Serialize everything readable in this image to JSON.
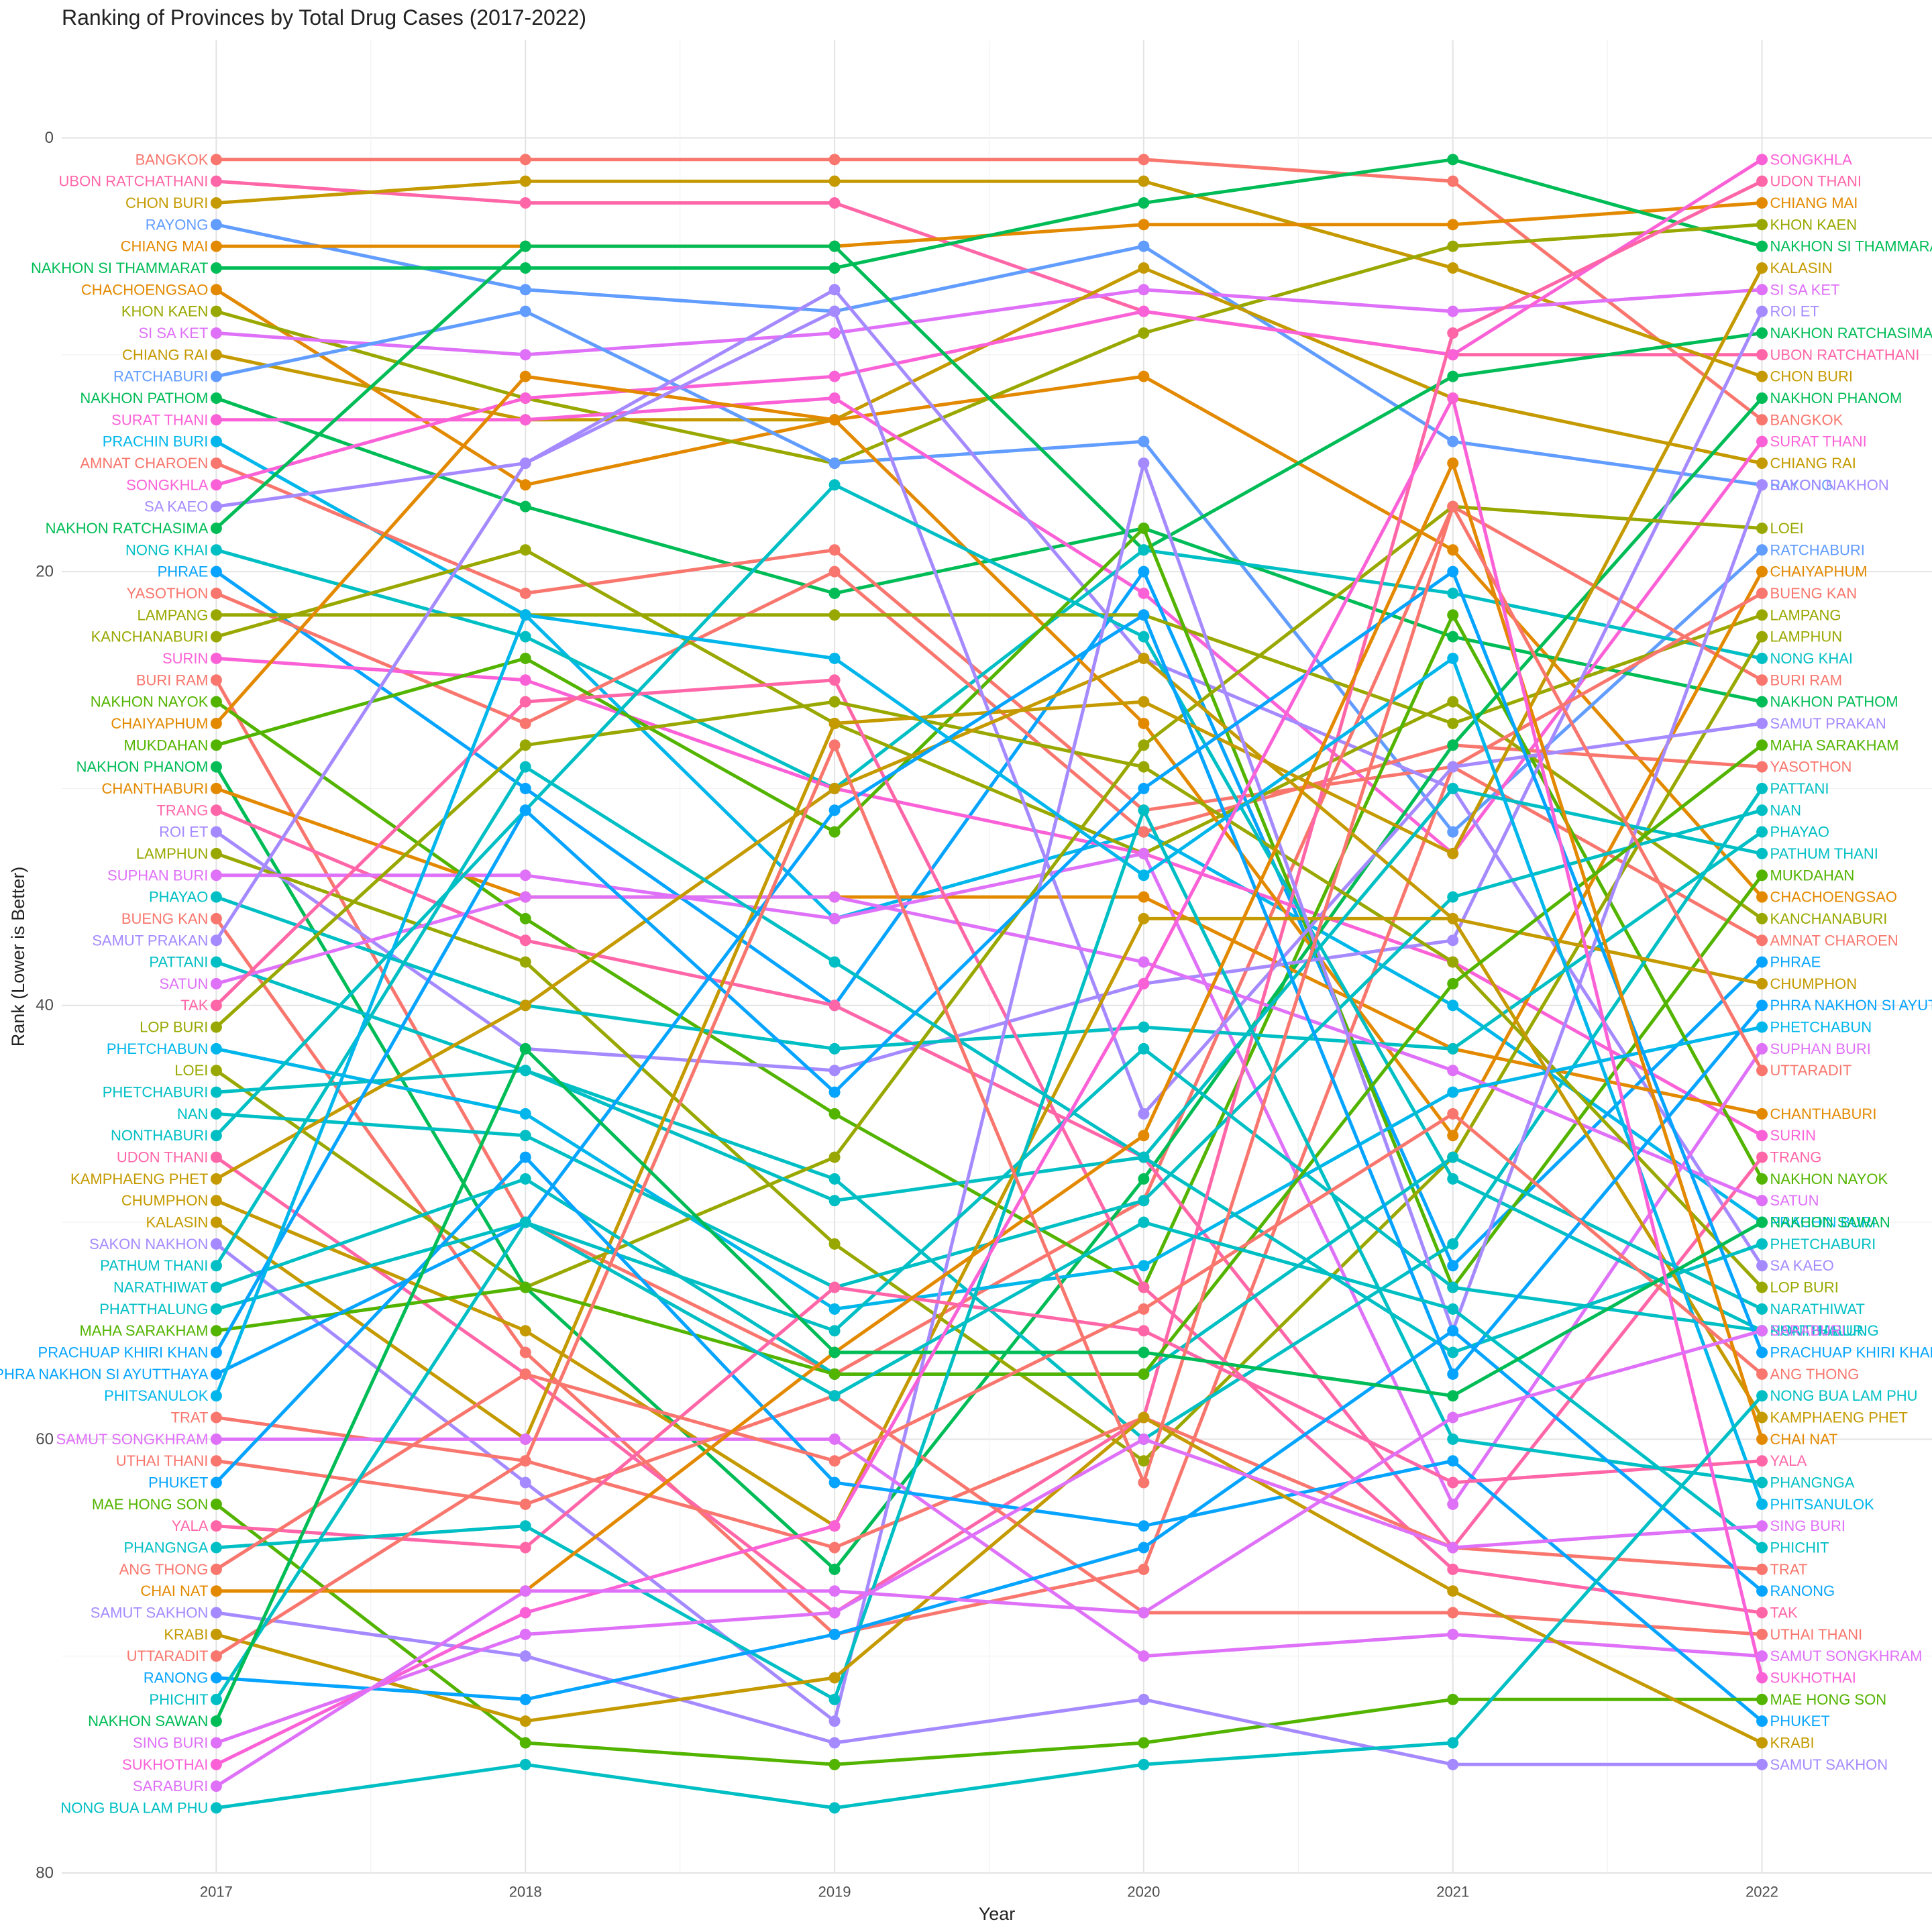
{
  "chart_data": {
    "type": "line",
    "title": "Ranking of Provinces by Total Drug Cases (2017-2022)",
    "xlabel": "Year",
    "ylabel": "Rank (Lower is Better)",
    "x": [
      "2017",
      "2018",
      "2019",
      "2020",
      "2021",
      "2022"
    ],
    "xlim": [
      2016.5,
      2022.55
    ],
    "ylim": [
      80,
      -4.5
    ],
    "y_ticks": [
      0,
      20,
      40,
      60,
      80
    ],
    "y_reversed": true,
    "grid": true,
    "legend": "none",
    "palette": [
      "#F8766D",
      "#E38900",
      "#C49A00",
      "#99A800",
      "#53B400",
      "#00BC56",
      "#00C094",
      "#00BFC4",
      "#00B6EB",
      "#06A4FF",
      "#A58AFF",
      "#DF70F8",
      "#FB61D7",
      "#FF66A8"
    ],
    "series": [
      {
        "name": "BANGKOK",
        "color": "#F8766D",
        "values": [
          1,
          1,
          1,
          1,
          2,
          13
        ]
      },
      {
        "name": "UBON RATCHATHANI",
        "color": "#FF66A8",
        "values": [
          2,
          3,
          3,
          8,
          10,
          10
        ]
      },
      {
        "name": "CHON BURI",
        "color": "#C49A00",
        "values": [
          3,
          2,
          2,
          2,
          6,
          11
        ]
      },
      {
        "name": "RAYONG",
        "color": "#619CFF",
        "values": [
          4,
          7,
          8,
          5,
          14,
          16
        ]
      },
      {
        "name": "CHIANG MAI",
        "color": "#E38900",
        "values": [
          5,
          5,
          5,
          4,
          4,
          3
        ]
      },
      {
        "name": "NAKHON SI THAMMARAT",
        "color": "#00BC56",
        "values": [
          6,
          6,
          6,
          3,
          1,
          5
        ]
      },
      {
        "name": "CHACHOENGSAO",
        "color": "#E38900",
        "values": [
          7,
          16,
          13,
          11,
          19,
          35
        ]
      },
      {
        "name": "KHON KAEN",
        "color": "#99A800",
        "values": [
          8,
          12,
          15,
          9,
          5,
          4
        ]
      },
      {
        "name": "SI SA KET",
        "color": "#DF70F8",
        "values": [
          9,
          10,
          9,
          7,
          8,
          7
        ]
      },
      {
        "name": "CHIANG RAI",
        "color": "#C49A00",
        "values": [
          10,
          13,
          13,
          6,
          12,
          15
        ]
      },
      {
        "name": "RATCHABURI",
        "color": "#619CFF",
        "values": [
          11,
          8,
          15,
          14,
          32,
          19
        ]
      },
      {
        "name": "NAKHON PATHOM",
        "color": "#00BC56",
        "values": [
          12,
          17,
          21,
          18,
          23,
          26
        ]
      },
      {
        "name": "SURAT THANI",
        "color": "#FB61D7",
        "values": [
          13,
          13,
          12,
          21,
          33,
          14
        ]
      },
      {
        "name": "PRACHIN BURI",
        "color": "#00B6EB",
        "values": [
          14,
          22,
          36,
          32,
          40,
          50
        ]
      },
      {
        "name": "AMNAT CHAROEN",
        "color": "#F8766D",
        "values": [
          15,
          21,
          19,
          31,
          29,
          37
        ]
      },
      {
        "name": "SONGKHLA",
        "color": "#FB61D7",
        "values": [
          16,
          12,
          11,
          8,
          10,
          1
        ]
      },
      {
        "name": "SA KAEO",
        "color": "#A58AFF",
        "values": [
          17,
          15,
          7,
          24,
          30,
          52
        ]
      },
      {
        "name": "NAKHON RATCHASIMA",
        "color": "#00BC56",
        "values": [
          18,
          5,
          5,
          19,
          11,
          9
        ]
      },
      {
        "name": "NONG KHAI",
        "color": "#00BFC4",
        "values": [
          19,
          23,
          30,
          19,
          21,
          24
        ]
      },
      {
        "name": "PHRAE",
        "color": "#06A4FF",
        "values": [
          20,
          30,
          40,
          20,
          52,
          38
        ]
      },
      {
        "name": "YASOTHON",
        "color": "#F8766D",
        "values": [
          21,
          27,
          20,
          32,
          28,
          29
        ]
      },
      {
        "name": "LAMPANG",
        "color": "#99A800",
        "values": [
          22,
          22,
          22,
          22,
          27,
          22
        ]
      },
      {
        "name": "KANCHANABURI",
        "color": "#99A800",
        "values": [
          23,
          19,
          27,
          33,
          26,
          36
        ]
      },
      {
        "name": "SURIN",
        "color": "#FB61D7",
        "values": [
          24,
          25,
          30,
          33,
          38,
          46
        ]
      },
      {
        "name": "BURI RAM",
        "color": "#F8766D",
        "values": [
          25,
          50,
          57,
          49,
          17,
          25
        ]
      },
      {
        "name": "NAKHON NAYOK",
        "color": "#53B400",
        "values": [
          26,
          36,
          45,
          53,
          22,
          48
        ]
      },
      {
        "name": "CHAIYAPHUM",
        "color": "#E38900",
        "values": [
          27,
          11,
          13,
          27,
          46,
          20
        ]
      },
      {
        "name": "MUKDAHAN",
        "color": "#53B400",
        "values": [
          28,
          24,
          32,
          18,
          53,
          34
        ]
      },
      {
        "name": "NAKHON PHANOM",
        "color": "#00BC56",
        "values": [
          29,
          53,
          66,
          48,
          28,
          12
        ]
      },
      {
        "name": "CHANTHABURI",
        "color": "#E38900",
        "values": [
          30,
          35,
          35,
          35,
          42,
          45
        ]
      },
      {
        "name": "TRANG",
        "color": "#FF66A8",
        "values": [
          31,
          37,
          40,
          47,
          65,
          47
        ]
      },
      {
        "name": "ROI ET",
        "color": "#A58AFF",
        "values": [
          32,
          42,
          43,
          39,
          37,
          8
        ]
      },
      {
        "name": "LAMPHUN",
        "color": "#99A800",
        "values": [
          33,
          38,
          51,
          61,
          47,
          23
        ]
      },
      {
        "name": "SUPHAN BURI",
        "color": "#DF70F8",
        "values": [
          34,
          34,
          36,
          33,
          63,
          42
        ]
      },
      {
        "name": "PHAYAO",
        "color": "#00BFC4",
        "values": [
          35,
          40,
          42,
          41,
          42,
          32
        ]
      },
      {
        "name": "BUENG KAN",
        "color": "#F8766D",
        "values": [
          36,
          56,
          69,
          66,
          29,
          21
        ]
      },
      {
        "name": "SAMUT PRAKAN",
        "color": "#A58AFF",
        "values": [
          37,
          15,
          8,
          45,
          29,
          27
        ]
      },
      {
        "name": "PATTANI",
        "color": "#00BFC4",
        "values": [
          38,
          43,
          48,
          60,
          51,
          30
        ]
      },
      {
        "name": "SATUN",
        "color": "#DF70F8",
        "values": [
          39,
          35,
          35,
          38,
          43,
          49
        ]
      },
      {
        "name": "TAK",
        "color": "#FF66A8",
        "values": [
          40,
          26,
          25,
          53,
          66,
          68
        ]
      },
      {
        "name": "LOP BURI",
        "color": "#99A800",
        "values": [
          41,
          28,
          26,
          29,
          38,
          53
        ]
      },
      {
        "name": "PHETCHABUN",
        "color": "#00B6EB",
        "values": [
          42,
          45,
          54,
          52,
          44,
          41
        ]
      },
      {
        "name": "LOEI",
        "color": "#99A800",
        "values": [
          43,
          53,
          47,
          28,
          17,
          18
        ]
      },
      {
        "name": "PHETCHABURI",
        "color": "#00BFC4",
        "values": [
          44,
          43,
          49,
          47,
          56,
          51
        ]
      },
      {
        "name": "NAN",
        "color": "#00BFC4",
        "values": [
          45,
          46,
          53,
          49,
          35,
          31
        ]
      },
      {
        "name": "NONTHABURI",
        "color": "#00BFC4",
        "values": [
          46,
          31,
          16,
          23,
          48,
          55
        ]
      },
      {
        "name": "UDON THANI",
        "color": "#FF66A8",
        "values": [
          47,
          57,
          68,
          59,
          9,
          2
        ]
      },
      {
        "name": "KAMPHAENG PHET",
        "color": "#C49A00",
        "values": [
          48,
          40,
          30,
          24,
          36,
          59
        ]
      },
      {
        "name": "CHUMPHON",
        "color": "#C49A00",
        "values": [
          49,
          55,
          64,
          36,
          36,
          39
        ]
      },
      {
        "name": "KALASIN",
        "color": "#C49A00",
        "values": [
          50,
          60,
          27,
          26,
          33,
          6
        ]
      },
      {
        "name": "SAKON NAKHON",
        "color": "#A58AFF",
        "values": [
          51,
          62,
          73,
          15,
          55,
          16
        ]
      },
      {
        "name": "PATHUM THANI",
        "color": "#00BFC4",
        "values": [
          52,
          29,
          38,
          47,
          30,
          33
        ]
      },
      {
        "name": "NARATHIWAT",
        "color": "#00BFC4",
        "values": [
          53,
          48,
          57,
          57,
          47,
          54
        ]
      },
      {
        "name": "PHATTHALUNG",
        "color": "#00BFC4",
        "values": [
          54,
          50,
          55,
          42,
          53,
          55
        ]
      },
      {
        "name": "MAHA SARAKHAM",
        "color": "#53B400",
        "values": [
          55,
          53,
          57,
          57,
          39,
          28
        ]
      },
      {
        "name": "PRACHUAP KHIRI KHAN",
        "color": "#06A4FF",
        "values": [
          56,
          31,
          44,
          30,
          20,
          56
        ]
      },
      {
        "name": "PHRA NAKHON SI AYUTTHAYA",
        "color": "#06A4FF",
        "values": [
          57,
          50,
          31,
          22,
          57,
          40
        ]
      },
      {
        "name": "PHITSANULOK",
        "color": "#00B6EB",
        "values": [
          58,
          22,
          24,
          34,
          24,
          63
        ]
      },
      {
        "name": "TRAT",
        "color": "#F8766D",
        "values": [
          59,
          61,
          65,
          59,
          65,
          66
        ]
      },
      {
        "name": "SAMUT SONGKHRAM",
        "color": "#DF70F8",
        "values": [
          60,
          60,
          60,
          70,
          69,
          70
        ]
      },
      {
        "name": "UTHAI THANI",
        "color": "#F8766D",
        "values": [
          61,
          63,
          58,
          68,
          68,
          69
        ]
      },
      {
        "name": "PHUKET",
        "color": "#06A4FF",
        "values": [
          62,
          47,
          62,
          64,
          61,
          73
        ]
      },
      {
        "name": "MAE HONG SON",
        "color": "#53B400",
        "values": [
          63,
          74,
          75,
          74,
          72,
          72
        ]
      },
      {
        "name": "YALA",
        "color": "#FF66A8",
        "values": [
          64,
          65,
          53,
          55,
          62,
          61
        ]
      },
      {
        "name": "PHANGNGA",
        "color": "#00BFC4",
        "values": [
          65,
          64,
          72,
          31,
          60,
          62
        ]
      },
      {
        "name": "ANG THONG",
        "color": "#F8766D",
        "values": [
          66,
          57,
          61,
          54,
          45,
          57
        ]
      },
      {
        "name": "CHAI NAT",
        "color": "#E38900",
        "values": [
          67,
          67,
          56,
          46,
          15,
          60
        ]
      },
      {
        "name": "SAMUT SAKHON",
        "color": "#A58AFF",
        "values": [
          68,
          70,
          74,
          72,
          75,
          75
        ]
      },
      {
        "name": "KRABI",
        "color": "#C49A00",
        "values": [
          69,
          73,
          71,
          59,
          67,
          74
        ]
      },
      {
        "name": "UTTARADIT",
        "color": "#F8766D",
        "values": [
          70,
          61,
          28,
          62,
          17,
          43
        ]
      },
      {
        "name": "RANONG",
        "color": "#06A4FF",
        "values": [
          71,
          72,
          69,
          65,
          55,
          67
        ]
      },
      {
        "name": "PHICHIT",
        "color": "#00BFC4",
        "values": [
          72,
          50,
          58,
          50,
          54,
          65
        ]
      },
      {
        "name": "NAKHON SAWAN",
        "color": "#00BC56",
        "values": [
          73,
          42,
          56,
          56,
          58,
          50
        ]
      },
      {
        "name": "SING BURI",
        "color": "#DF70F8",
        "values": [
          74,
          69,
          68,
          60,
          65,
          64
        ]
      },
      {
        "name": "SUKHOTHAI",
        "color": "#FB61D7",
        "values": [
          75,
          68,
          64,
          39,
          12,
          71
        ]
      },
      {
        "name": "SARABURI",
        "color": "#DF70F8",
        "values": [
          76,
          67,
          67,
          68,
          59,
          55
        ]
      },
      {
        "name": "NONG BUA LAM PHU",
        "color": "#00BFC4",
        "values": [
          77,
          75,
          77,
          75,
          74,
          58
        ]
      }
    ]
  }
}
